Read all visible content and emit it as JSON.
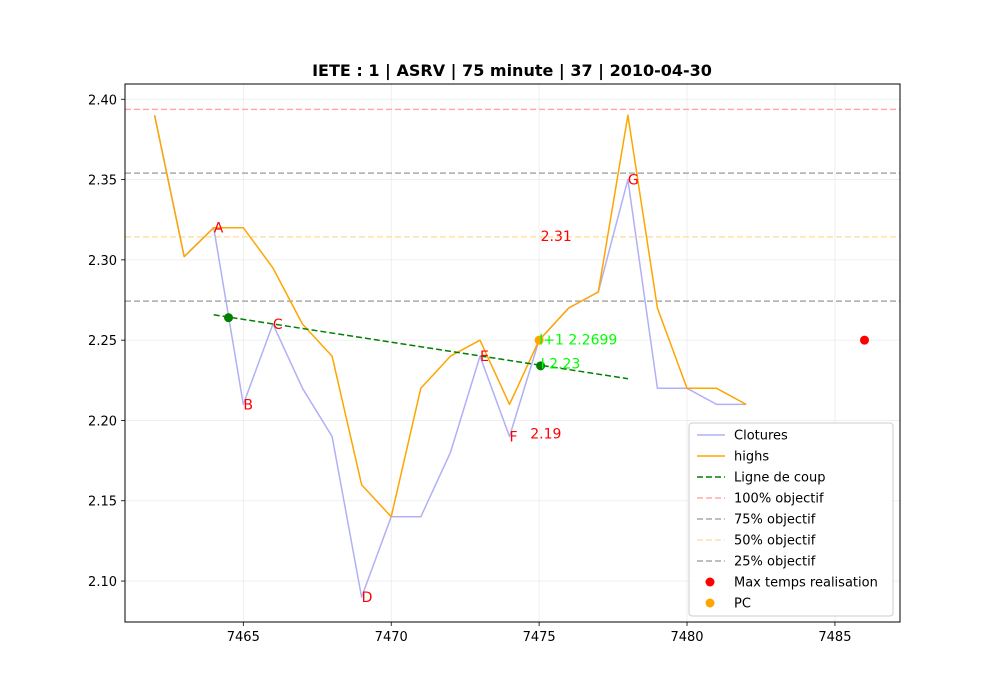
{
  "chart_data": {
    "type": "line",
    "title": "IETE : 1 | ASRV | 75 minute | 37 | 2010-04-30",
    "xlabel": "",
    "ylabel": "",
    "xlim": [
      7461,
      7487.2
    ],
    "ylim": [
      2.0745,
      2.4095
    ],
    "xticks": [
      7465,
      7470,
      7475,
      7480,
      7485
    ],
    "yticks": [
      2.1,
      2.15,
      2.2,
      2.25,
      2.3,
      2.35,
      2.4
    ],
    "grid": true,
    "legend_position": "lower-right",
    "series": [
      {
        "name": "Clotures",
        "style": "solid",
        "color": "#b0b0f8",
        "points": [
          [
            7462,
            2.39
          ],
          [
            7463,
            2.302
          ],
          [
            7464,
            2.32
          ],
          [
            7465,
            2.21
          ],
          [
            7466,
            2.26
          ],
          [
            7467,
            2.22
          ],
          [
            7468,
            2.19
          ],
          [
            7469,
            2.09
          ],
          [
            7470,
            2.14
          ],
          [
            7471,
            2.14
          ],
          [
            7472,
            2.18
          ],
          [
            7473,
            2.24
          ],
          [
            7474,
            2.19
          ],
          [
            7475,
            2.25
          ],
          [
            7476,
            2.27
          ],
          [
            7477,
            2.28
          ],
          [
            7478,
            2.35
          ],
          [
            7479,
            2.22
          ],
          [
            7480,
            2.22
          ],
          [
            7481,
            2.21
          ],
          [
            7482,
            2.21
          ]
        ]
      },
      {
        "name": "highs",
        "style": "solid",
        "color": "#ffa500",
        "points": [
          [
            7462,
            2.39
          ],
          [
            7463,
            2.302
          ],
          [
            7464,
            2.32
          ],
          [
            7465,
            2.32
          ],
          [
            7466,
            2.295
          ],
          [
            7467,
            2.26
          ],
          [
            7468,
            2.24
          ],
          [
            7469,
            2.16
          ],
          [
            7470,
            2.14
          ],
          [
            7471,
            2.22
          ],
          [
            7472,
            2.24
          ],
          [
            7473,
            2.25
          ],
          [
            7474,
            2.21
          ],
          [
            7475,
            2.25
          ],
          [
            7476,
            2.27
          ],
          [
            7477,
            2.28
          ],
          [
            7478,
            2.39
          ],
          [
            7479,
            2.27
          ],
          [
            7480,
            2.22
          ],
          [
            7481,
            2.22
          ],
          [
            7482,
            2.21
          ]
        ]
      },
      {
        "name": "Ligne de coup",
        "style": "dashed",
        "color": "#008000",
        "points": [
          [
            7464,
            2.2658
          ],
          [
            7478,
            2.226
          ]
        ]
      }
    ],
    "hlines": [
      {
        "name": "100% objectif",
        "y": 2.3937,
        "color": "#ffaaaa"
      },
      {
        "name": "75% objectif",
        "y": 2.354,
        "color": "#aaaaaa"
      },
      {
        "name": "50% objectif",
        "y": 2.3143,
        "color": "#ffe0a8"
      },
      {
        "name": "25% objectif",
        "y": 2.2743,
        "color": "#aaaaaa"
      }
    ],
    "markers": [
      {
        "name": "Max temps realisation",
        "x": 7486,
        "y": 2.25,
        "color": "#ff0000"
      },
      {
        "name": "PC",
        "x": 7475,
        "y": 2.25,
        "color": "#ffa500"
      },
      {
        "name": "",
        "x": 7464.5,
        "y": 2.264,
        "color": "#008000"
      },
      {
        "name": "",
        "x": 7475.05,
        "y": 2.234,
        "color": "#008000"
      }
    ],
    "point_labels": [
      {
        "text": "A",
        "x": 7464,
        "y": 2.32,
        "color": "#ff0000"
      },
      {
        "text": "B",
        "x": 7465,
        "y": 2.21,
        "color": "#ff0000"
      },
      {
        "text": "C",
        "x": 7466,
        "y": 2.26,
        "color": "#ff0000"
      },
      {
        "text": "D",
        "x": 7469,
        "y": 2.09,
        "color": "#ff0000"
      },
      {
        "text": "E",
        "x": 7473,
        "y": 2.24,
        "color": "#ff0000"
      },
      {
        "text": "F",
        "x": 7474,
        "y": 2.19,
        "color": "#ff0000"
      },
      {
        "text": "G",
        "x": 7478,
        "y": 2.35,
        "color": "#ff0000"
      },
      {
        "text": "2.31",
        "x": 7475.05,
        "y": 2.315,
        "color": "#ff0000"
      },
      {
        "text": "2.19",
        "x": 7474.7,
        "y": 2.192,
        "color": "#ff0000"
      },
      {
        "text": "I+1 2.2699",
        "x": 7475.0,
        "y": 2.2505,
        "color": "#00ff00"
      },
      {
        "text": "I 2.23",
        "x": 7475.05,
        "y": 2.2355,
        "color": "#00ff00"
      }
    ]
  }
}
